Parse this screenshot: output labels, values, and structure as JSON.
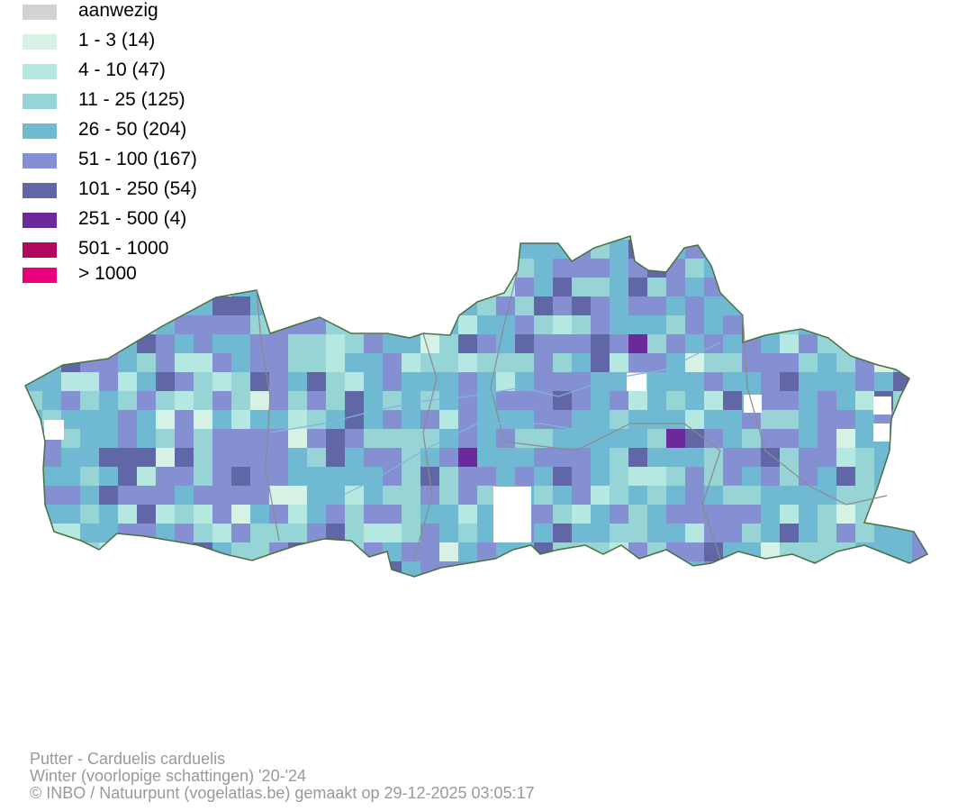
{
  "legend": {
    "items": [
      {
        "label": "aanwezig",
        "color": "#d3d3d3"
      },
      {
        "label": "1 - 3 (14)",
        "color": "#d7f2e5"
      },
      {
        "label": "4 - 10 (47)",
        "color": "#b5e8e0"
      },
      {
        "label": "11 - 25 (125)",
        "color": "#96d4d6"
      },
      {
        "label": "26 - 50 (204)",
        "color": "#6fbad2"
      },
      {
        "label": "51 - 100 (167)",
        "color": "#8590d2"
      },
      {
        "label": "101 - 250 (54)",
        "color": "#6066a6"
      },
      {
        "label": "251 - 500 (4)",
        "color": "#6b2a9a"
      },
      {
        "label": "501 - 1000",
        "color": "#b0085e"
      },
      {
        "label": "> 1000",
        "color": "#e8007d"
      }
    ]
  },
  "map": {
    "outline_color": "#4a7040",
    "province_border_color": "#8a8a8a",
    "river_color": "#7fb6e0"
  },
  "footer": {
    "species": "Putter - Carduelis carduelis",
    "season": "Winter (voorlopige schattingen) '20-'24",
    "credit": "© INBO / Natuurpunt (vogelatlas.be) gemaakt op 29-12-2025 03:05:17"
  }
}
